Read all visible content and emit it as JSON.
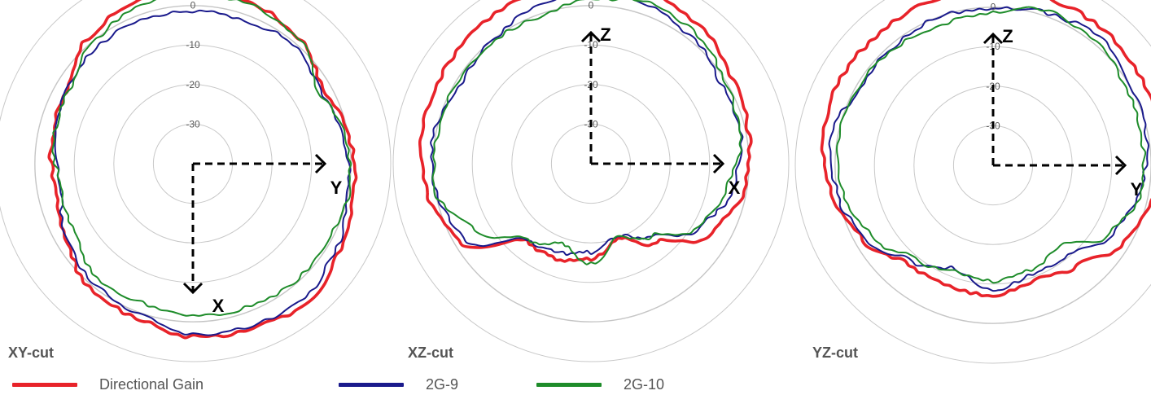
{
  "chart_data": {
    "type": "polar",
    "radial_ticks": [
      "10",
      "0",
      "-10",
      "-20",
      "-30"
    ],
    "radial_values": [
      10,
      0,
      -10,
      -20,
      -30
    ],
    "rlim": [
      -40,
      10
    ],
    "colors": {
      "Directional Gain": "#e8232a",
      "2G-9": "#1a1a8c",
      "2G-10": "#1e8c2a"
    },
    "legend": [
      {
        "name": "Directional Gain",
        "color": "#e8232a"
      },
      {
        "name": "2G-9",
        "color": "#1a1a8c"
      },
      {
        "name": "2G-10",
        "color": "#1e8c2a"
      }
    ],
    "legend_placement": "bottom",
    "angles_deg": [
      0,
      20,
      40,
      60,
      80,
      100,
      120,
      140,
      160,
      180,
      200,
      220,
      240,
      260,
      280,
      300,
      320,
      340
    ],
    "charts": [
      {
        "title": "XY-cut",
        "axes": [
          {
            "label": "Y",
            "dir": "right"
          },
          {
            "label": "X",
            "dir": "down"
          }
        ],
        "series": [
          {
            "name": "Directional Gain",
            "values": [
              4.4,
              3.2,
              1.6,
              -2,
              0.2,
              1.2,
              3.2,
              5.4,
              4.2,
              3.7,
              1.5,
              0.8,
              -2.8,
              -4.5,
              -3.8,
              -3.2,
              1.4,
              3.3
            ]
          },
          {
            "name": "2G-9",
            "values": [
              -1.5,
              -1.5,
              -0.6,
              -2.8,
              -1.4,
              -0.1,
              2,
              4,
              3.5,
              3.2,
              0.2,
              -0.8,
              -3,
              -6.2,
              -4.5,
              -3.2,
              -1.9,
              -1.3
            ]
          },
          {
            "name": "2G-10",
            "values": [
              3.5,
              2.6,
              1.4,
              -3.2,
              -1,
              0.1,
              -0.9,
              -0.6,
              -1.3,
              -1.4,
              -2.6,
              -2.4,
              -5.3,
              -6.2,
              -4.2,
              -3.6,
              -0.4,
              2
            ]
          }
        ]
      },
      {
        "title": "XZ-cut",
        "axes": [
          {
            "label": "Z",
            "dir": "up"
          },
          {
            "label": "X",
            "dir": "right"
          }
        ],
        "series": [
          {
            "name": "Directional Gain",
            "values": [
              6.5,
              5.8,
              4.2,
              1.8,
              0.6,
              -0.8,
              -4.7,
              -14,
              -20,
              -16,
              -14.5,
              -14.4,
              -1.3,
              2,
              3.5,
              3.9,
              4.9,
              5.4
            ]
          },
          {
            "name": "2G-9",
            "values": [
              3.5,
              2.7,
              0.7,
              -1.5,
              -1.4,
              -3.5,
              -7.7,
              -16.1,
              -20.7,
              -17.6,
              -16.3,
              -14.9,
              -2.4,
              -0.2,
              0.6,
              -1.4,
              -0.2,
              1.8
            ]
          },
          {
            "name": "2G-10",
            "values": [
              1.4,
              3.3,
              2.2,
              -0.3,
              -1.8,
              -4.9,
              -8.5,
              -16.1,
              -20.1,
              -14.6,
              -18.5,
              -15,
              -6.4,
              -0.1,
              -0.5,
              -0.4,
              -0.4,
              -0.6
            ]
          }
        ]
      },
      {
        "title": "YZ-cut",
        "axes": [
          {
            "label": "Z",
            "dir": "up"
          },
          {
            "label": "Y",
            "dir": "right"
          }
        ],
        "series": [
          {
            "name": "Directional Gain",
            "values": [
              5.1,
              4.3,
              4.2,
              3.4,
              3.5,
              1.3,
              -1.6,
              -7,
              -9.2,
              -7.2,
              -7.3,
              -7.2,
              -2.2,
              1.4,
              3.8,
              4.4,
              4,
              4.4
            ]
          },
          {
            "name": "2G-9",
            "values": [
              -0.5,
              0.8,
              2.2,
              0.2,
              -0.6,
              -2.2,
              -5.2,
              -10.5,
              -10.7,
              -8.6,
              -12.1,
              -8.3,
              -2.8,
              0.1,
              1.9,
              -1.1,
              -0.9,
              -0.1
            ]
          },
          {
            "name": "2G-10",
            "values": [
              -1.5,
              1.5,
              0.6,
              -1,
              -1.8,
              -1.9,
              -5.8,
              -13.5,
              -12,
              -10.7,
              -11.6,
              -9.2,
              -4.4,
              -1.4,
              -0.3,
              -0.6,
              -1.5,
              -2.1
            ]
          }
        ]
      }
    ]
  }
}
